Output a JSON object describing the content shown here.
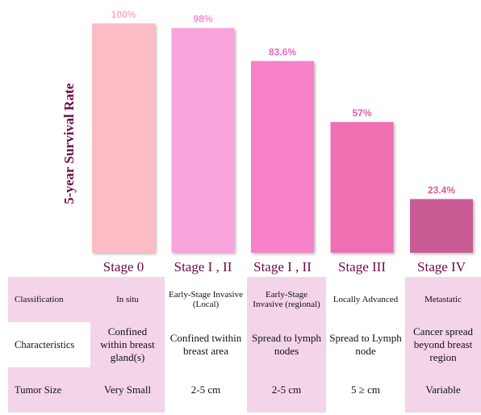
{
  "chart_data": {
    "type": "bar",
    "ylabel": "5-year Survival Rate",
    "categories": [
      "Stage 0",
      "Stage I , II",
      "Stage I , II",
      "Stage III",
      "Stage IV"
    ],
    "values": [
      100,
      98,
      83.6,
      57,
      23.4
    ],
    "value_labels": [
      "100%",
      "98%",
      "83.6%",
      "57%",
      "23.4%"
    ],
    "ylim": [
      0,
      100
    ],
    "grid": false,
    "colors": [
      "#fcbcc6",
      "#f9a4dd",
      "#f782c9",
      "#ee6fb3",
      "#c95c95"
    ],
    "label_colors": [
      "#f9b0c0",
      "#f48fd2",
      "#ec69bf",
      "#e55aa8",
      "#d85c95"
    ]
  },
  "table": {
    "row_headers": [
      "Classification",
      "Characteristics",
      "Tumor Size"
    ],
    "rows": [
      [
        "In situ",
        "Early-Stage Invasive (Local)",
        "Early-Stage Invasive (regional)",
        "Locally Advanced",
        "Metastatic"
      ],
      [
        "Confined within breast gland(s)",
        "Confined twithin breast area",
        "Spread to lymph nodes",
        "Spread to Lymph node",
        "Cancer spread beyond breast region"
      ],
      [
        "Very Small",
        "2-5 cm",
        "2-5 cm",
        "5 ≥ cm",
        "Variable"
      ]
    ]
  }
}
